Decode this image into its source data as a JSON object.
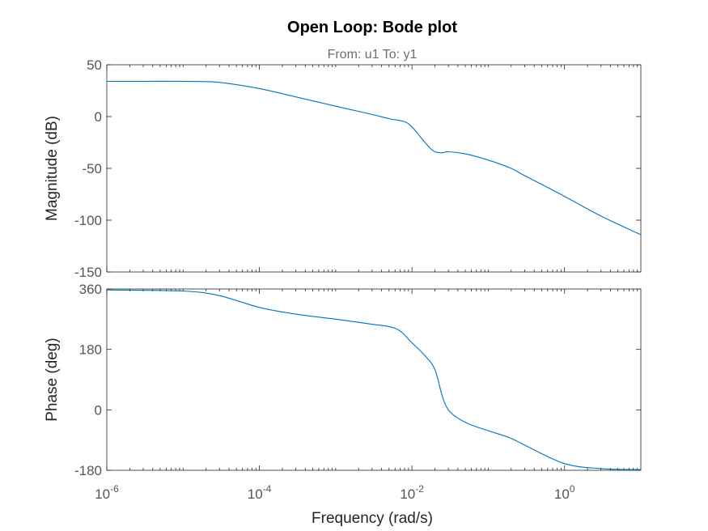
{
  "chart_data": {
    "type": "line",
    "title": "Open Loop: Bode plot",
    "subtitle": "From: u1  To: y1",
    "xlabel": "Frequency  (rad/s)",
    "x_scale": "log",
    "xlim": [
      1e-06,
      10
    ],
    "x_ticks": [
      {
        "base": "10",
        "exp": "-6",
        "value": 1e-06
      },
      {
        "base": "10",
        "exp": "-4",
        "value": 0.0001
      },
      {
        "base": "10",
        "exp": "-2",
        "value": 0.01
      },
      {
        "base": "10",
        "exp": "0",
        "value": 1
      }
    ],
    "line_color": "#0072BD",
    "grid": false,
    "panels": [
      {
        "name": "magnitude",
        "ylabel": "Magnitude (dB)",
        "ylim": [
          -150,
          50
        ],
        "y_ticks": [
          50,
          0,
          -50,
          -100,
          -150
        ],
        "y_tick_labels": [
          "50",
          "0",
          "-50",
          "-100",
          "-150"
        ],
        "x": [
          1e-06,
          3e-06,
          1e-05,
          3e-05,
          0.0001,
          0.0003,
          0.001,
          0.003,
          0.005,
          0.008,
          0.01,
          0.013,
          0.017,
          0.02,
          0.025,
          0.03,
          0.05,
          0.1,
          0.2,
          0.3,
          1,
          3,
          10
        ],
        "values": [
          34,
          34,
          34,
          33,
          27,
          19,
          10,
          2,
          -2,
          -5,
          -10,
          -20,
          -30,
          -34,
          -35,
          -34,
          -36,
          -42,
          -50,
          -57,
          -77,
          -96,
          -114
        ]
      },
      {
        "name": "phase",
        "ylabel": "Phase (deg)",
        "ylim": [
          -180,
          360
        ],
        "y_ticks": [
          360,
          180,
          0,
          -180
        ],
        "y_tick_labels": [
          "360",
          "180",
          "0",
          "-180"
        ],
        "x": [
          1e-06,
          1e-05,
          3e-05,
          0.0001,
          0.0003,
          0.001,
          0.003,
          0.005,
          0.007,
          0.01,
          0.015,
          0.02,
          0.025,
          0.03,
          0.04,
          0.06,
          0.1,
          0.2,
          0.3,
          1,
          3,
          10
        ],
        "values": [
          357,
          354,
          340,
          305,
          285,
          270,
          255,
          248,
          235,
          200,
          160,
          120,
          40,
          0,
          -25,
          -45,
          -62,
          -85,
          -105,
          -160,
          -175,
          -178
        ]
      }
    ]
  }
}
